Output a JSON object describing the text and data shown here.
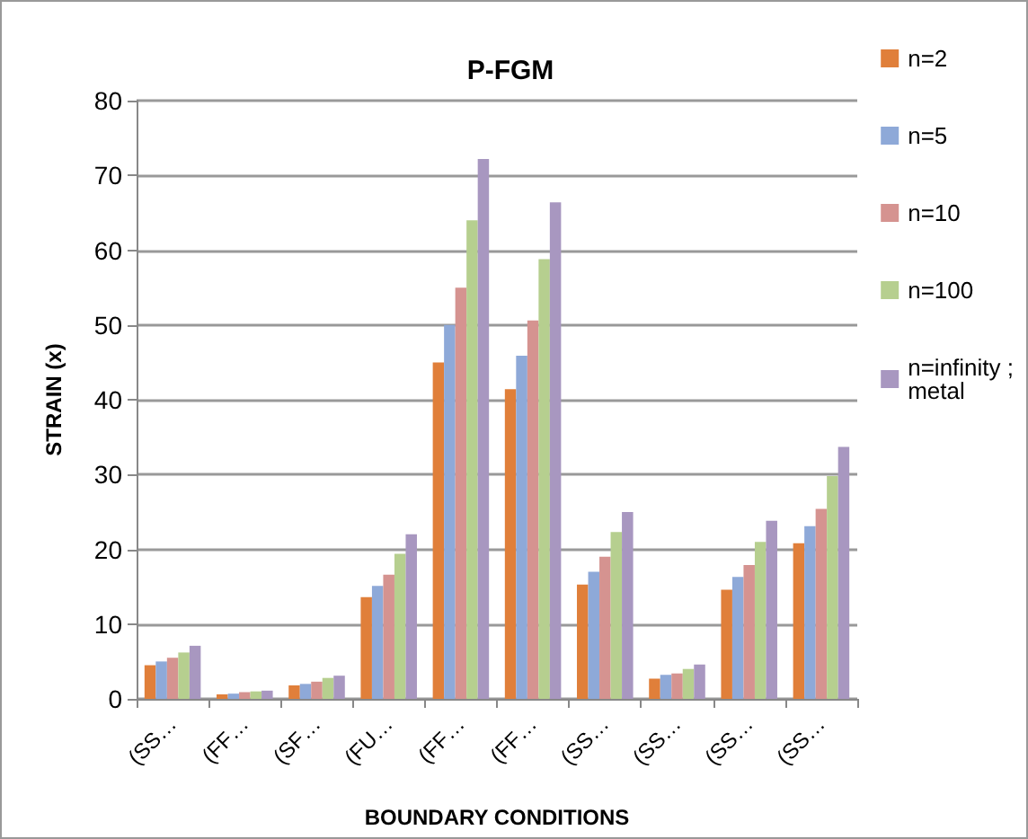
{
  "chart_data": {
    "type": "bar",
    "title": "P-FGM",
    "xlabel": "BOUNDARY CONDITIONS",
    "ylabel": "STRAIN (x)",
    "categories": [
      "(SS…",
      "(FF…",
      "(SF…",
      "(FU…",
      "(FF…",
      "(FF…",
      "(SS…",
      "(SS…",
      "(SS…",
      "(SS…"
    ],
    "series": [
      {
        "name": "n=2",
        "color": "#e07f3a",
        "values": [
          4.5,
          0.6,
          1.8,
          13.6,
          45,
          41.4,
          15.3,
          2.7,
          14.6,
          20.8
        ]
      },
      {
        "name": "n=5",
        "color": "#8ea9d8",
        "values": [
          5,
          0.7,
          2,
          15.1,
          50,
          45.9,
          17,
          3.2,
          16.3,
          23.1
        ]
      },
      {
        "name": "n=10",
        "color": "#d59390",
        "values": [
          5.5,
          0.9,
          2.3,
          16.6,
          55,
          50.6,
          19,
          3.4,
          17.9,
          25.4
        ]
      },
      {
        "name": "n=100",
        "color": "#b6cf8f",
        "values": [
          6.2,
          1.0,
          2.8,
          19.4,
          64,
          58.8,
          22.3,
          4,
          21,
          29.8
        ]
      },
      {
        "name": "n=infinity ;\nmetal",
        "color": "#a897c0",
        "values": [
          7.1,
          1.1,
          3.1,
          22,
          72.2,
          66.4,
          25,
          4.6,
          23.8,
          33.7
        ]
      }
    ],
    "ylim": [
      0,
      80
    ],
    "yticks": [
      0,
      10,
      20,
      30,
      40,
      50,
      60,
      70,
      80
    ],
    "grid": "y",
    "legend": "right"
  }
}
